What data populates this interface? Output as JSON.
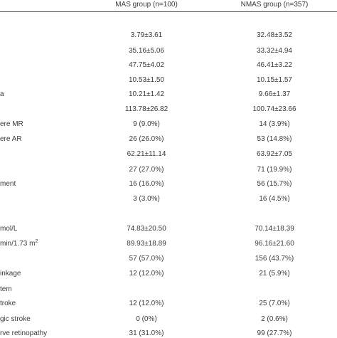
{
  "header": {
    "col_mas": "MAS group (n=100)",
    "col_nmas": "NMAS group (n=357)"
  },
  "rows": [
    {
      "label": "",
      "mas": "3.79±3.61",
      "nmas": "32.48±3.52"
    },
    {
      "label": "",
      "mas": "35.16±5.06",
      "nmas": "33.32±4.94"
    },
    {
      "label": "",
      "mas": "47.75±4.02",
      "nmas": "46.41±3.22"
    },
    {
      "label": "",
      "mas": "10.53±1.50",
      "nmas": "10.15±1.57"
    },
    {
      "label": "a",
      "mas": "10.21±1.42",
      "nmas": "9.66±1.37"
    },
    {
      "label": "",
      "mas": "113.78±26.82",
      "nmas": "100.74±23.66"
    },
    {
      "label": "ere MR",
      "mas": "9 (9.0%)",
      "nmas": "14 (3.9%)"
    },
    {
      "label": "ere AR",
      "mas": "26 (26.0%)",
      "nmas": "53 (14.8%)"
    },
    {
      "label": "",
      "mas": "62.21±11.14",
      "nmas": "63.92±7.05"
    },
    {
      "label": "",
      "mas": "27 (27.0%)",
      "nmas": "71 (19.9%)"
    },
    {
      "label": "ment",
      "mas": "16 (16.0%)",
      "nmas": "56 (15.7%)"
    },
    {
      "label": "",
      "mas": "3 (3.0%)",
      "nmas": "16 (4.5%)"
    },
    {
      "label": "mol/L",
      "mas": "74.83±20.50",
      "nmas": "70.14±18.39"
    },
    {
      "label": "min/1.73 m",
      "label_sup": "2",
      "mas": "89.93±18.89",
      "nmas": "96.16±21.60"
    },
    {
      "label": "",
      "mas": "57 (57.0%)",
      "nmas": "156 (43.7%)"
    },
    {
      "label": "inkage",
      "mas": "12 (12.0%)",
      "nmas": "21 (5.9%)"
    },
    {
      "label": "tem",
      "mas": "",
      "nmas": ""
    },
    {
      "label": "troke",
      "mas": "12 (12.0%)",
      "nmas": "25 (7.0%)"
    },
    {
      "label": "gic stroke",
      "mas": "0 (0%)",
      "nmas": "2 (0.6%)"
    },
    {
      "label": "rve retinopathy",
      "mas": "31 (31.0%)",
      "nmas": "99 (27.7%)"
    }
  ]
}
